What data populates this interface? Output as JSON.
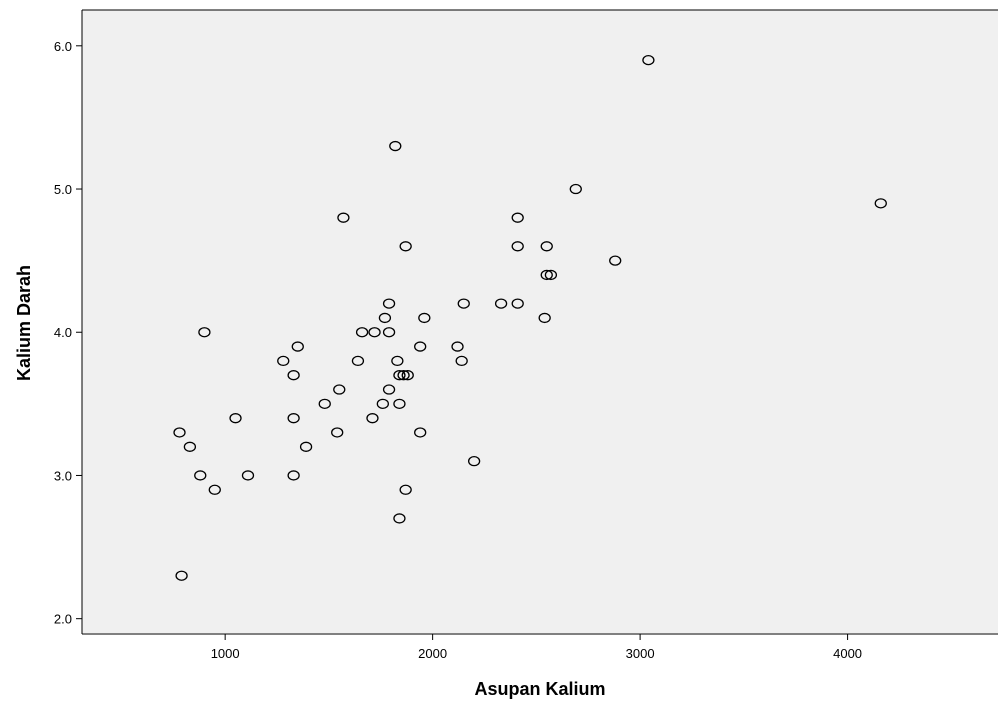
{
  "chart_data": {
    "type": "scatter",
    "title": "",
    "xlabel": "Asupan Kalium",
    "ylabel": "Kalium Darah",
    "xlim": [
      310,
      4725
    ],
    "ylim": [
      1.9,
      6.25
    ],
    "x_ticks": [
      1000,
      2000,
      3000,
      4000
    ],
    "y_ticks": [
      2.0,
      3.0,
      4.0,
      5.0,
      6.0
    ],
    "x_tick_labels": [
      "1000",
      "2000",
      "3000",
      "4000"
    ],
    "y_tick_labels": [
      "2.0",
      "3.0",
      "4.0",
      "5.0",
      "6.0"
    ],
    "grid": false,
    "plot_background": "#f0f0f0",
    "marker_stroke": "#000000",
    "marker": "open-circle",
    "series": [
      {
        "points": [
          [
            3040,
            5.9
          ],
          [
            1820,
            5.3
          ],
          [
            2690,
            5.0
          ],
          [
            4160,
            4.9
          ],
          [
            1570,
            4.8
          ],
          [
            2410,
            4.8
          ],
          [
            1870,
            4.6
          ],
          [
            2410,
            4.6
          ],
          [
            2550,
            4.6
          ],
          [
            2880,
            4.5
          ],
          [
            2550,
            4.4
          ],
          [
            2570,
            4.4
          ],
          [
            1790,
            4.2
          ],
          [
            2150,
            4.2
          ],
          [
            2330,
            4.2
          ],
          [
            2410,
            4.2
          ],
          [
            1770,
            4.1
          ],
          [
            1960,
            4.1
          ],
          [
            2540,
            4.1
          ],
          [
            900,
            4.0
          ],
          [
            1660,
            4.0
          ],
          [
            1720,
            4.0
          ],
          [
            1790,
            4.0
          ],
          [
            1350,
            3.9
          ],
          [
            1940,
            3.9
          ],
          [
            2120,
            3.9
          ],
          [
            1280,
            3.8
          ],
          [
            1640,
            3.8
          ],
          [
            1830,
            3.8
          ],
          [
            2140,
            3.8
          ],
          [
            1330,
            3.7
          ],
          [
            1840,
            3.7
          ],
          [
            1860,
            3.7
          ],
          [
            1880,
            3.7
          ],
          [
            1550,
            3.6
          ],
          [
            1790,
            3.6
          ],
          [
            1480,
            3.5
          ],
          [
            1760,
            3.5
          ],
          [
            1840,
            3.5
          ],
          [
            1050,
            3.4
          ],
          [
            1330,
            3.4
          ],
          [
            1710,
            3.4
          ],
          [
            780,
            3.3
          ],
          [
            1540,
            3.3
          ],
          [
            1940,
            3.3
          ],
          [
            830,
            3.2
          ],
          [
            1390,
            3.2
          ],
          [
            2200,
            3.1
          ],
          [
            880,
            3.0
          ],
          [
            1110,
            3.0
          ],
          [
            1330,
            3.0
          ],
          [
            950,
            2.9
          ],
          [
            1870,
            2.9
          ],
          [
            1840,
            2.7
          ],
          [
            790,
            2.3
          ]
        ]
      }
    ]
  }
}
